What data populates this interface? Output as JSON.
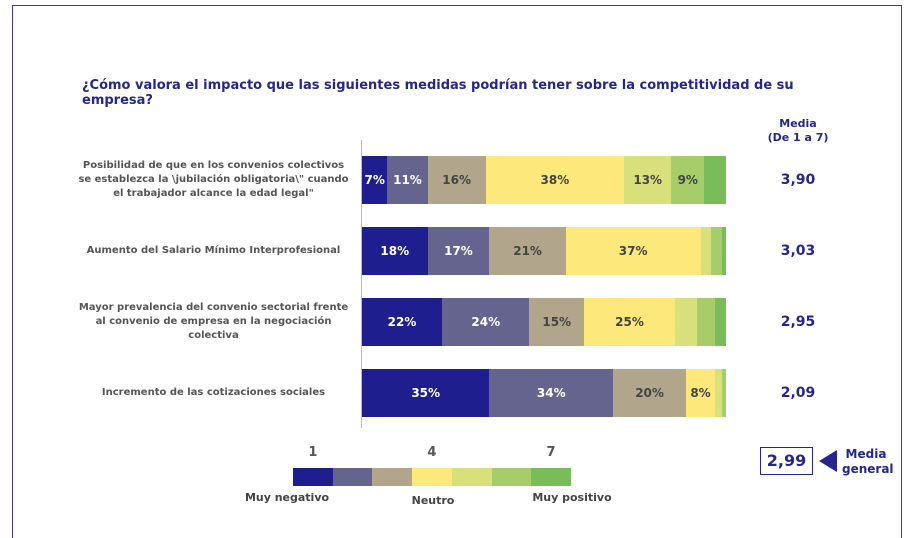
{
  "chart_data": {
    "type": "stacked_bar_horizontal",
    "title": "¿Cómo valora el impacto que las siguientes medidas podrían tener sobre la competitividad de su empresa?",
    "categories": [
      "Posibilidad de que en los convenios colectivos se establezca la \\jubilación obligatoria\\\" cuando el trabajador alcance la edad legal\"",
      "Aumento del Salario Mínimo Interprofesional",
      "Mayor prevalencia del convenio sectorial frente al convenio de empresa en la negociación colectiva",
      "Incremento de las cotizaciones sociales"
    ],
    "xlim": [
      0,
      100
    ],
    "series": [
      {
        "name": "1",
        "color": "#1f1e8e",
        "values": [
          7,
          18,
          22,
          35
        ],
        "value_labels": [
          "7%",
          "18%",
          "22%",
          "35%"
        ]
      },
      {
        "name": null,
        "color": "#65648f",
        "values": [
          11,
          17,
          24,
          34
        ],
        "value_labels": [
          "11%",
          "17%",
          "24%",
          "34%"
        ]
      },
      {
        "name": null,
        "color": "#b1a68b",
        "values": [
          16,
          21,
          15,
          20
        ],
        "value_labels": [
          "16%",
          "21%",
          "15%",
          "20%"
        ]
      },
      {
        "name": "4",
        "color": "#fde97b",
        "values": [
          38,
          37,
          25,
          8
        ],
        "value_labels": [
          "38%",
          "37%",
          "25%",
          "8%"
        ]
      },
      {
        "name": null,
        "color": "#d8e07c",
        "values": [
          13,
          3,
          6,
          2
        ],
        "value_labels": [
          "13%",
          null,
          null,
          null
        ]
      },
      {
        "name": null,
        "color": "#a7cd6b",
        "values": [
          9,
          3,
          5,
          1
        ],
        "value_labels": [
          "9%",
          null,
          null,
          null
        ]
      },
      {
        "name": "7",
        "color": "#79bd5b",
        "values": [
          6,
          1,
          3,
          0
        ],
        "value_labels": [
          null,
          null,
          null,
          null
        ]
      }
    ],
    "legend_labels": [
      "Muy negativo",
      "Neutro",
      "Muy positivo"
    ],
    "mean_header": "Media",
    "mean_subheader": "(De 1 a 7)",
    "means": [
      3.9,
      3.03,
      2.95,
      2.09
    ],
    "mean_labels": [
      "3,90",
      "3,03",
      "2,95",
      "2,09"
    ],
    "overall": {
      "value": 2.99,
      "label": "2,99",
      "name": "Media general"
    }
  }
}
